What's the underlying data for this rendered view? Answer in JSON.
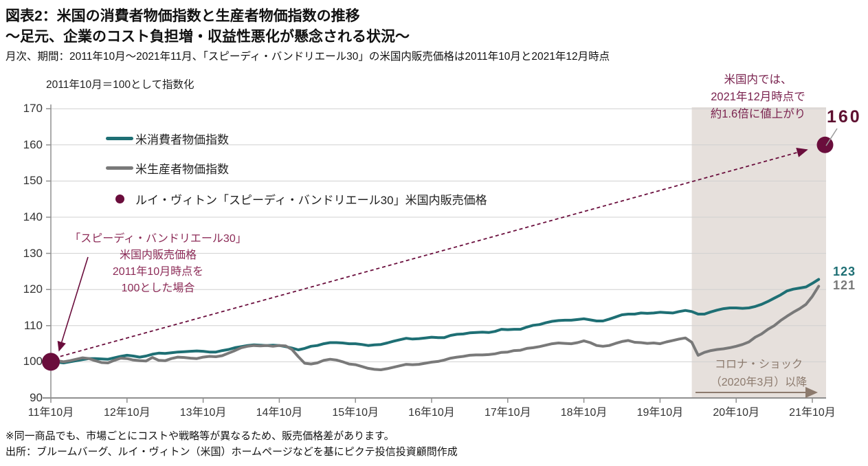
{
  "header": {
    "title_line1": "図表2：米国の消費者物価指数と生産者物価指数の推移",
    "title_line2": "～足元、企業のコスト負担増・収益性悪化が懸念される状況～",
    "subtitle": "月次、期間：2011年10月～2021年11月、「スピーディ・バンドリエール30」の米国内販売価格は2011年10月と2021年12月時点"
  },
  "axis_note": "2011年10月＝100として指数化",
  "legend": [
    {
      "label": "米消費者物価指数",
      "color": "#1E6F74",
      "type": "line"
    },
    {
      "label": "米生産者物価指数",
      "color": "#797979",
      "type": "line"
    },
    {
      "label": "ルイ・ヴィトン「スピーディ・バンドリエール30」米国内販売価格",
      "color": "#6A0D3C",
      "type": "dot"
    }
  ],
  "annotations": {
    "left": {
      "lines": [
        "「スピーディ・バンドリエール30」",
        "米国内販売価格",
        "2011年10月時点を",
        "100とした場合"
      ]
    },
    "top_right": {
      "lines": [
        "米国内では、",
        "2021年12月時点で",
        "約1.6倍に値上がり"
      ]
    },
    "lv_end_value": "160",
    "cpi_end_value": "123",
    "ppi_end_value": "121",
    "corona": {
      "lines": [
        "コロナ・ショック",
        "（2020年3月）以降"
      ],
      "start": "2020-03"
    }
  },
  "footnotes": [
    "※同一商品でも、市場ごとにコストや戦略等が異なるため、販売価格差があります。",
    "出所：ブルームバーグ、ルイ・ヴィトン（米国）ホームページなどを基にピクテ投信投資顧問作成"
  ],
  "colors": {
    "cpi": "#1E6F74",
    "ppi": "#797979",
    "lv": "#6A0D3C",
    "lv_label": "#5E1030",
    "annotation": "#8C2B57",
    "annotation_tr": "#7B2450",
    "corona": "#8C7A6D",
    "shading": "#E6E0DC",
    "grid": "#D0D0D0",
    "axis": "#8F8F8F"
  },
  "chart_data": {
    "type": "line",
    "title": "米国の消費者物価指数と生産者物価指数の推移",
    "xlabel": "",
    "ylabel": "2011年10月＝100として指数化",
    "x_start": "2011-10",
    "x_end": "2021-11",
    "x_tick_labels": [
      "11年10月",
      "12年10月",
      "13年10月",
      "14年10月",
      "15年10月",
      "16年10月",
      "17年10月",
      "18年10月",
      "19年10月",
      "20年10月",
      "21年10月"
    ],
    "ylim": [
      90,
      170
    ],
    "y_ticks": [
      90,
      100,
      110,
      120,
      130,
      140,
      150,
      160,
      170
    ],
    "grid": "horizontal",
    "legend_position": "upper-left-inside",
    "series": [
      {
        "name": "米消費者物価指数",
        "color": "#1E6F74",
        "end_label": "123",
        "values": [
          100.0,
          99.9,
          99.7,
          100.0,
          100.3,
          100.6,
          100.9,
          100.9,
          100.8,
          100.7,
          101.1,
          101.5,
          101.8,
          101.6,
          101.3,
          101.6,
          102.1,
          102.4,
          102.3,
          102.5,
          102.7,
          102.8,
          102.9,
          103.0,
          102.9,
          102.7,
          102.7,
          103.1,
          103.4,
          103.9,
          104.2,
          104.5,
          104.7,
          104.6,
          104.5,
          104.6,
          104.5,
          104.2,
          103.8,
          103.3,
          103.7,
          104.3,
          104.5,
          105.0,
          105.3,
          105.3,
          105.2,
          105.0,
          105.0,
          104.8,
          104.5,
          104.7,
          104.8,
          105.2,
          105.7,
          106.1,
          106.5,
          106.3,
          106.4,
          106.6,
          106.8,
          106.7,
          106.7,
          107.3,
          107.6,
          107.7,
          108.0,
          108.1,
          108.2,
          108.1,
          108.4,
          109.0,
          108.9,
          109.0,
          109.0,
          109.6,
          110.1,
          110.3,
          110.8,
          111.2,
          111.4,
          111.5,
          111.5,
          111.7,
          111.9,
          111.6,
          111.3,
          111.3,
          111.8,
          112.4,
          113.0,
          113.2,
          113.2,
          113.5,
          113.4,
          113.5,
          113.7,
          113.6,
          113.5,
          113.9,
          114.2,
          113.9,
          113.2,
          113.2,
          113.8,
          114.3,
          114.7,
          114.9,
          114.9,
          114.8,
          114.9,
          115.3,
          115.9,
          116.7,
          117.6,
          118.5,
          119.6,
          120.1,
          120.4,
          120.7,
          121.7,
          122.8
        ]
      },
      {
        "name": "米生産者物価指数",
        "color": "#797979",
        "end_label": "121",
        "values": [
          100.0,
          100.3,
          100.0,
          100.3,
          100.7,
          101.1,
          100.9,
          100.3,
          99.8,
          99.7,
          100.4,
          101.0,
          100.9,
          100.5,
          100.3,
          100.2,
          101.2,
          100.4,
          100.3,
          100.9,
          101.3,
          101.2,
          101.0,
          100.9,
          101.3,
          101.5,
          101.4,
          101.7,
          102.4,
          103.1,
          103.9,
          104.3,
          104.5,
          104.4,
          104.5,
          104.3,
          104.5,
          104.4,
          103.4,
          101.4,
          99.6,
          99.4,
          99.7,
          100.4,
          100.7,
          100.5,
          100.0,
          99.4,
          99.2,
          98.7,
          98.2,
          97.9,
          97.8,
          98.1,
          98.5,
          98.9,
          99.3,
          99.2,
          99.3,
          99.6,
          99.9,
          100.1,
          100.5,
          101.0,
          101.3,
          101.5,
          101.8,
          101.9,
          101.9,
          102.0,
          102.2,
          102.6,
          102.7,
          103.1,
          103.2,
          103.7,
          103.9,
          104.2,
          104.6,
          105.0,
          105.2,
          105.1,
          105.0,
          105.3,
          105.8,
          105.3,
          104.5,
          104.3,
          104.5,
          105.1,
          105.6,
          105.9,
          105.4,
          105.3,
          105.1,
          105.2,
          105.0,
          105.5,
          105.9,
          106.3,
          106.6,
          105.4,
          101.8,
          102.6,
          103.1,
          103.4,
          103.6,
          103.9,
          104.3,
          104.8,
          105.5,
          106.8,
          107.7,
          109.0,
          110.0,
          111.4,
          112.6,
          113.7,
          114.7,
          115.9,
          118.1,
          120.9
        ]
      }
    ],
    "points": [
      {
        "name": "ルイ・ヴィトン「スピーディ・バンドリエール30」米国内販売価格",
        "date": "2011-10",
        "month_index": 0,
        "value": 100
      },
      {
        "name": "ルイ・ヴィトン「スピーディ・バンドリエール30」米国内販売価格",
        "date": "2021-12",
        "month_index": 122,
        "value": 160
      }
    ],
    "shaded_region": {
      "label": "コロナ・ショック（2020年3月）以降",
      "from_date": "2020-03",
      "from_month_index": 101
    }
  }
}
